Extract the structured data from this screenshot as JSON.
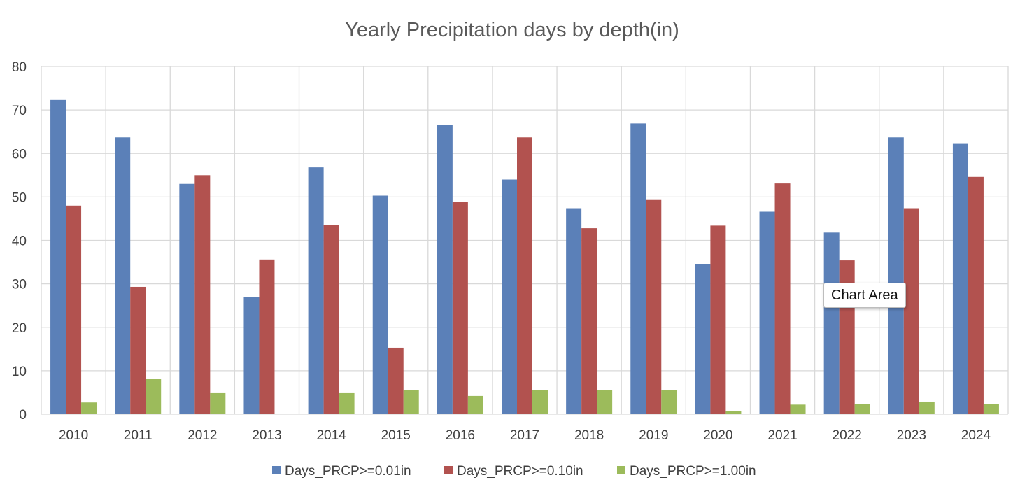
{
  "tooltip": {
    "text": "Chart Area"
  },
  "colors": {
    "series": [
      "#5b80b8",
      "#b2524f",
      "#9cbb5b"
    ],
    "grid": "#d9d9d9"
  },
  "chart_data": {
    "type": "bar",
    "title": "Yearly Precipitation days by depth(in)",
    "xlabel": "",
    "ylabel": "",
    "ylim": [
      0,
      80
    ],
    "yticks": [
      0,
      10,
      20,
      30,
      40,
      50,
      60,
      70,
      80
    ],
    "grid": true,
    "legend": "bottom",
    "categories": [
      "2010",
      "2011",
      "2012",
      "2013",
      "2014",
      "2015",
      "2016",
      "2017",
      "2018",
      "2019",
      "2020",
      "2021",
      "2022",
      "2023",
      "2024"
    ],
    "series": [
      {
        "name": "Days_PRCP>=0.01in",
        "values": [
          72.3,
          63.7,
          53,
          27,
          56.8,
          50.3,
          66.6,
          54,
          47.4,
          66.9,
          34.5,
          46.6,
          41.8,
          63.7,
          62.2
        ]
      },
      {
        "name": "Days_PRCP>=0.10in",
        "values": [
          48,
          29.3,
          55,
          35.6,
          43.6,
          15.3,
          48.9,
          63.7,
          42.8,
          49.3,
          43.4,
          53.1,
          35.4,
          47.4,
          54.6
        ]
      },
      {
        "name": "Days_PRCP>=1.00in",
        "values": [
          2.7,
          8.1,
          5,
          0,
          5,
          5.5,
          4.2,
          5.5,
          5.6,
          5.6,
          0.8,
          2.2,
          2.4,
          2.9,
          2.4
        ]
      }
    ]
  }
}
